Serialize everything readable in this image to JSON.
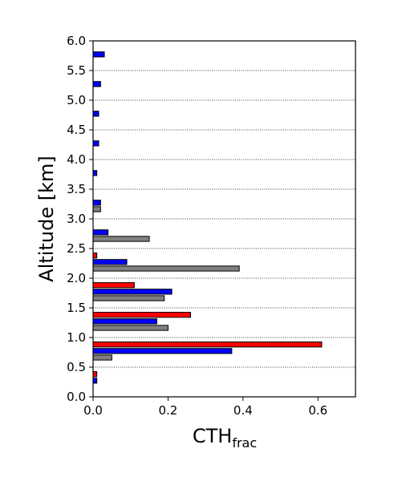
{
  "chart_data": {
    "type": "bar",
    "orientation": "horizontal",
    "ylabel": "Altitude [km]",
    "xlabel_main": "CTH",
    "xlabel_sub": "frac",
    "xlim": [
      0,
      0.7
    ],
    "ylim": [
      0,
      6.0
    ],
    "x_ticks": [
      0.0,
      0.2,
      0.4,
      0.6
    ],
    "x_tick_labels": [
      "0.0",
      "0.2",
      "0.4",
      "0.6"
    ],
    "y_ticks": [
      0.0,
      0.5,
      1.0,
      1.5,
      2.0,
      2.5,
      3.0,
      3.5,
      4.0,
      4.5,
      5.0,
      5.5,
      6.0
    ],
    "y_tick_labels": [
      "0.0",
      "0.5",
      "1.0",
      "1.5",
      "2.0",
      "2.5",
      "3.0",
      "3.5",
      "4.0",
      "4.5",
      "5.0",
      "5.5",
      "6.0"
    ],
    "grid": "horizontal dotted",
    "bin_edges": [
      0.0,
      0.5,
      1.0,
      1.5,
      2.0,
      2.5,
      3.0,
      3.5,
      4.0,
      4.5,
      5.0,
      5.5,
      6.0
    ],
    "series": [
      {
        "color": "#ff0000",
        "values": [
          0.01,
          0.61,
          0.26,
          0.11,
          0.01,
          0,
          0,
          0,
          0,
          0,
          0,
          0
        ]
      },
      {
        "color": "#0000ff",
        "values": [
          0.01,
          0.37,
          0.17,
          0.21,
          0.09,
          0.04,
          0.02,
          0.01,
          0.015,
          0.015,
          0.02,
          0.03
        ]
      },
      {
        "color": "#808080",
        "values": [
          0,
          0.05,
          0.2,
          0.19,
          0.39,
          0.15,
          0.02,
          0,
          0,
          0,
          0,
          0
        ]
      }
    ]
  }
}
